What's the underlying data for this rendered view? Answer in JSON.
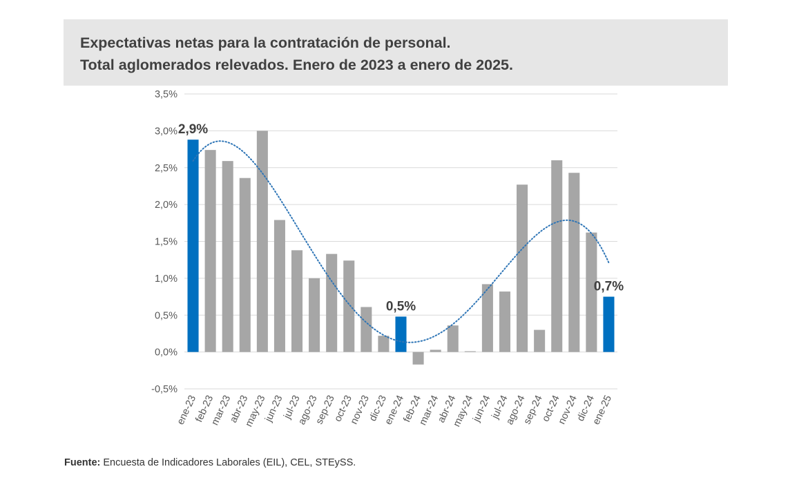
{
  "header": {
    "title_line1": "Expectativas netas para la contratación de personal.",
    "title_line2": "Total aglomerados relevados. Enero de 2023 a enero de 2025."
  },
  "footer": {
    "source_label": "Fuente:",
    "source_text": " Encuesta de Indicadores Laborales (EIL), CEL, STEySS."
  },
  "chart_data": {
    "type": "bar",
    "categories": [
      "ene-23",
      "feb-23",
      "mar-23",
      "abr-23",
      "may-23",
      "jun-23",
      "jul-23",
      "ago-23",
      "sep-23",
      "oct-23",
      "nov-23",
      "dic-23",
      "ene-24",
      "feb-24",
      "mar-24",
      "abr-24",
      "may-24",
      "jun-24",
      "jul-24",
      "ago-24",
      "sep-24",
      "oct-24",
      "nov-24",
      "dic-24",
      "ene-25"
    ],
    "values": [
      2.88,
      2.74,
      2.59,
      2.36,
      3.0,
      1.79,
      1.38,
      1.0,
      1.33,
      1.24,
      0.61,
      0.22,
      0.48,
      -0.17,
      0.03,
      0.36,
      0.01,
      0.92,
      0.82,
      2.27,
      0.3,
      2.6,
      2.43,
      1.62,
      0.75
    ],
    "highlighted": [
      "ene-23",
      "ene-24",
      "ene-25"
    ],
    "highlight_color": "#0070c0",
    "bar_color": "#a6a6a6",
    "trendline": {
      "style": "dotted",
      "type": "polynomial",
      "color": "#2e75b6"
    },
    "data_labels": [
      {
        "category": "ene-23",
        "text": "2,9%"
      },
      {
        "category": "ene-24",
        "text": "0,5%"
      },
      {
        "category": "ene-25",
        "text": "0,7%"
      }
    ],
    "ylim": [
      -0.5,
      3.5
    ],
    "yticks": [
      {
        "value": 3.5,
        "label": "3,5%"
      },
      {
        "value": 3.0,
        "label": "3,0%"
      },
      {
        "value": 2.5,
        "label": "2,5%"
      },
      {
        "value": 2.0,
        "label": "2,0%"
      },
      {
        "value": 1.5,
        "label": "1,5%"
      },
      {
        "value": 1.0,
        "label": "1,0%"
      },
      {
        "value": 0.5,
        "label": "0,5%"
      },
      {
        "value": 0.0,
        "label": "0,0%"
      },
      {
        "value": -0.5,
        "label": "-0,5%"
      }
    ],
    "grid": true,
    "xlabel": "",
    "ylabel": ""
  }
}
